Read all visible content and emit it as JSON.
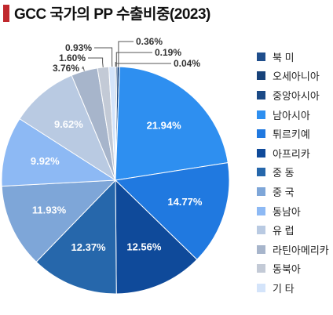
{
  "chart_data": {
    "type": "pie",
    "title": "GCC 국가의 PP 수출비중(2023)",
    "legend_position": "right",
    "slices": [
      {
        "label": "북 미",
        "value": 0.04,
        "display": "0.04%",
        "color": "#1f4e8c"
      },
      {
        "label": "오세아니아",
        "value": 0.19,
        "display": "0.19%",
        "color": "#17427a"
      },
      {
        "label": "중앙아시아",
        "value": 0.36,
        "display": "0.36%",
        "color": "#1b4a86"
      },
      {
        "label": "남아시아",
        "value": 21.94,
        "display": "21.94%",
        "color": "#2e8ff0"
      },
      {
        "label": "튀르키예",
        "value": 14.77,
        "display": "14.77%",
        "color": "#2079e0"
      },
      {
        "label": "아프리카",
        "value": 12.56,
        "display": "12.56%",
        "color": "#0f4a9a"
      },
      {
        "label": "중 동",
        "value": 12.37,
        "display": "12.37%",
        "color": "#2667ab"
      },
      {
        "label": "중 국",
        "value": 11.93,
        "display": "11.93%",
        "color": "#7ea6d8"
      },
      {
        "label": "동남아",
        "value": 9.92,
        "display": "9.92%",
        "color": "#8db9f4"
      },
      {
        "label": "유 럽",
        "value": 9.62,
        "display": "9.62%",
        "color": "#b9cae2"
      },
      {
        "label": "라틴아메리카",
        "value": 3.76,
        "display": "3.76%",
        "color": "#a7b5cb"
      },
      {
        "label": "동북아",
        "value": 1.6,
        "display": "1.60%",
        "color": "#c3cad6"
      },
      {
        "label": "기 타",
        "value": 0.93,
        "display": "0.93%",
        "color": "#d4e4fa"
      }
    ]
  }
}
